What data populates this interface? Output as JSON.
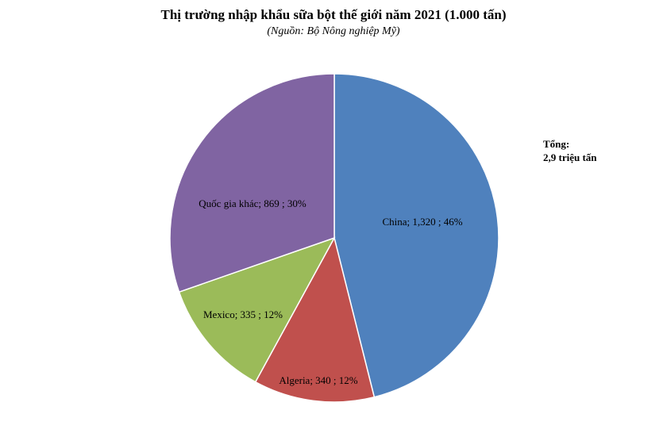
{
  "chart_data": {
    "type": "pie",
    "title": "Thị trường nhập khẩu sữa bột thế giới năm 2021 (1.000 tấn)",
    "subtitle": "(Nguồn: Bộ Nông nghiệp Mỹ)",
    "slices": [
      {
        "name": "China",
        "value": 1320,
        "value_label": "1,320",
        "percent_label": "46%",
        "color": "#4F81BD"
      },
      {
        "name": "Algeria",
        "value": 340,
        "value_label": "340",
        "percent_label": "12%",
        "color": "#C0504D"
      },
      {
        "name": "Mexico",
        "value": 335,
        "value_label": "335",
        "percent_label": "12%",
        "color": "#9BBB59"
      },
      {
        "name": "Quốc gia khác",
        "value": 869,
        "value_label": "869",
        "percent_label": "30%",
        "color": "#8064A2"
      }
    ],
    "start_angle_deg": 0,
    "direction": "clockwise",
    "annotation": {
      "line1": "Tổng:",
      "line2": "2,9 triệu tấn"
    }
  }
}
